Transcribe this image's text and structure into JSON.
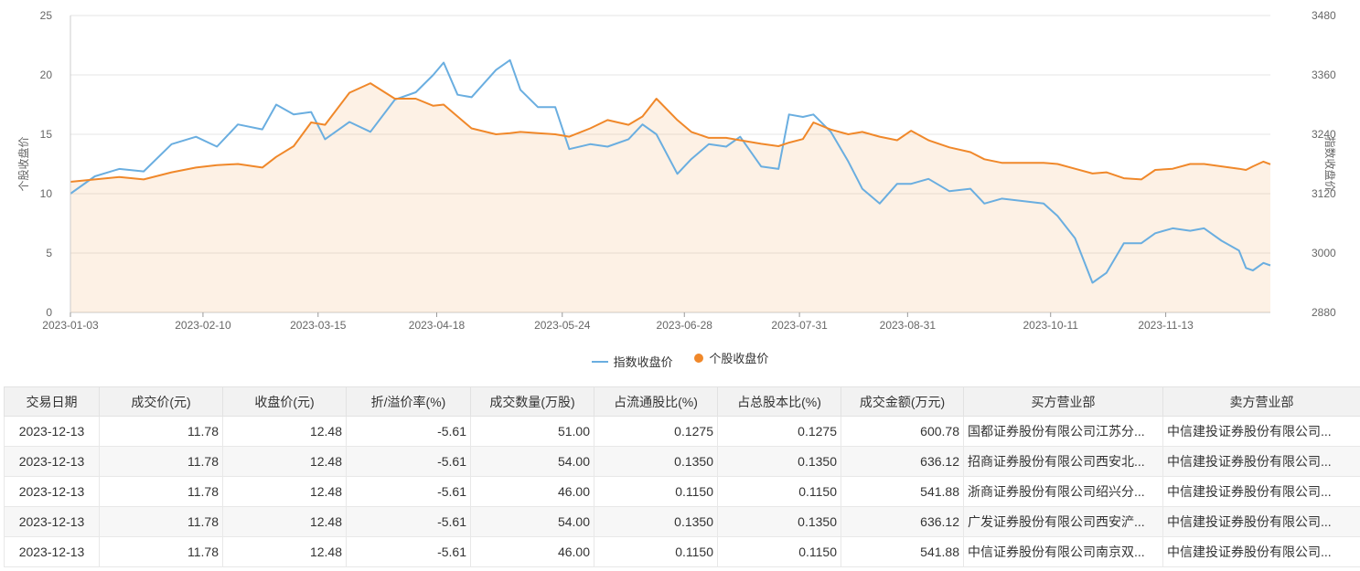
{
  "chart_data": {
    "type": "line",
    "left_axis": {
      "label": "个股收盘价",
      "range": [
        0,
        25
      ],
      "ticks": [
        "0",
        "5",
        "10",
        "15",
        "20",
        "25"
      ]
    },
    "right_axis": {
      "label": "指数收盘价",
      "range": [
        2880,
        3480
      ],
      "ticks": [
        "2880",
        "3000",
        "3120",
        "3240",
        "3360",
        "3480"
      ]
    },
    "x_ticks": [
      "2023-01-03",
      "2023-02-10",
      "2023-03-15",
      "2023-04-18",
      "2023-05-24",
      "2023-06-28",
      "2023-07-31",
      "2023-08-31",
      "2023-10-11",
      "2023-11-13"
    ],
    "x_range": [
      "2023-01-03",
      "2023-12-13"
    ],
    "grid": "horizontal",
    "legend_position": "bottom-center",
    "series": [
      {
        "name": "指数收盘价",
        "axis": "right",
        "color": "#6aaee0",
        "style": "line",
        "points": [
          [
            "2023-01-03",
            3120
          ],
          [
            "2023-01-10",
            3155
          ],
          [
            "2023-01-17",
            3170
          ],
          [
            "2023-01-24",
            3165
          ],
          [
            "2023-02-01",
            3220
          ],
          [
            "2023-02-08",
            3235
          ],
          [
            "2023-02-14",
            3215
          ],
          [
            "2023-02-20",
            3260
          ],
          [
            "2023-02-27",
            3250
          ],
          [
            "2023-03-03",
            3300
          ],
          [
            "2023-03-08",
            3280
          ],
          [
            "2023-03-13",
            3285
          ],
          [
            "2023-03-17",
            3230
          ],
          [
            "2023-03-24",
            3265
          ],
          [
            "2023-03-30",
            3245
          ],
          [
            "2023-04-06",
            3310
          ],
          [
            "2023-04-12",
            3325
          ],
          [
            "2023-04-17",
            3360
          ],
          [
            "2023-04-20",
            3385
          ],
          [
            "2023-04-24",
            3320
          ],
          [
            "2023-04-28",
            3315
          ],
          [
            "2023-05-05",
            3370
          ],
          [
            "2023-05-09",
            3390
          ],
          [
            "2023-05-12",
            3330
          ],
          [
            "2023-05-17",
            3295
          ],
          [
            "2023-05-22",
            3295
          ],
          [
            "2023-05-26",
            3210
          ],
          [
            "2023-06-01",
            3220
          ],
          [
            "2023-06-06",
            3215
          ],
          [
            "2023-06-12",
            3230
          ],
          [
            "2023-06-16",
            3260
          ],
          [
            "2023-06-20",
            3240
          ],
          [
            "2023-06-26",
            3160
          ],
          [
            "2023-06-30",
            3190
          ],
          [
            "2023-07-05",
            3220
          ],
          [
            "2023-07-10",
            3215
          ],
          [
            "2023-07-14",
            3235
          ],
          [
            "2023-07-20",
            3175
          ],
          [
            "2023-07-25",
            3170
          ],
          [
            "2023-07-28",
            3280
          ],
          [
            "2023-08-01",
            3275
          ],
          [
            "2023-08-04",
            3280
          ],
          [
            "2023-08-09",
            3245
          ],
          [
            "2023-08-14",
            3185
          ],
          [
            "2023-08-18",
            3130
          ],
          [
            "2023-08-23",
            3100
          ],
          [
            "2023-08-28",
            3140
          ],
          [
            "2023-09-01",
            3140
          ],
          [
            "2023-09-06",
            3150
          ],
          [
            "2023-09-12",
            3125
          ],
          [
            "2023-09-18",
            3130
          ],
          [
            "2023-09-22",
            3100
          ],
          [
            "2023-09-27",
            3110
          ],
          [
            "2023-10-09",
            3100
          ],
          [
            "2023-10-13",
            3075
          ],
          [
            "2023-10-18",
            3030
          ],
          [
            "2023-10-23",
            2940
          ],
          [
            "2023-10-27",
            2960
          ],
          [
            "2023-11-01",
            3020
          ],
          [
            "2023-11-06",
            3020
          ],
          [
            "2023-11-10",
            3040
          ],
          [
            "2023-11-15",
            3050
          ],
          [
            "2023-11-20",
            3045
          ],
          [
            "2023-11-24",
            3050
          ],
          [
            "2023-11-29",
            3025
          ],
          [
            "2023-12-04",
            3005
          ],
          [
            "2023-12-06",
            2970
          ],
          [
            "2023-12-08",
            2965
          ],
          [
            "2023-12-11",
            2980
          ],
          [
            "2023-12-13",
            2975
          ]
        ]
      },
      {
        "name": "个股收盘价",
        "axis": "left",
        "color": "#f0882a",
        "style": "area",
        "points": [
          [
            "2023-01-03",
            11.0
          ],
          [
            "2023-01-10",
            11.2
          ],
          [
            "2023-01-17",
            11.4
          ],
          [
            "2023-01-24",
            11.2
          ],
          [
            "2023-02-01",
            11.8
          ],
          [
            "2023-02-08",
            12.2
          ],
          [
            "2023-02-14",
            12.4
          ],
          [
            "2023-02-20",
            12.5
          ],
          [
            "2023-02-27",
            12.2
          ],
          [
            "2023-03-03",
            13.1
          ],
          [
            "2023-03-08",
            14.0
          ],
          [
            "2023-03-13",
            16.0
          ],
          [
            "2023-03-17",
            15.8
          ],
          [
            "2023-03-24",
            18.5
          ],
          [
            "2023-03-30",
            19.3
          ],
          [
            "2023-04-06",
            18.0
          ],
          [
            "2023-04-12",
            18.0
          ],
          [
            "2023-04-17",
            17.4
          ],
          [
            "2023-04-20",
            17.5
          ],
          [
            "2023-04-24",
            16.5
          ],
          [
            "2023-04-28",
            15.5
          ],
          [
            "2023-05-05",
            15.0
          ],
          [
            "2023-05-09",
            15.1
          ],
          [
            "2023-05-12",
            15.2
          ],
          [
            "2023-05-17",
            15.1
          ],
          [
            "2023-05-22",
            15.0
          ],
          [
            "2023-05-26",
            14.8
          ],
          [
            "2023-06-01",
            15.5
          ],
          [
            "2023-06-06",
            16.2
          ],
          [
            "2023-06-12",
            15.8
          ],
          [
            "2023-06-16",
            16.5
          ],
          [
            "2023-06-20",
            18.0
          ],
          [
            "2023-06-26",
            16.2
          ],
          [
            "2023-06-30",
            15.2
          ],
          [
            "2023-07-05",
            14.7
          ],
          [
            "2023-07-10",
            14.7
          ],
          [
            "2023-07-14",
            14.5
          ],
          [
            "2023-07-20",
            14.2
          ],
          [
            "2023-07-25",
            14.0
          ],
          [
            "2023-07-28",
            14.3
          ],
          [
            "2023-08-01",
            14.6
          ],
          [
            "2023-08-04",
            16.0
          ],
          [
            "2023-08-09",
            15.4
          ],
          [
            "2023-08-14",
            15.0
          ],
          [
            "2023-08-18",
            15.2
          ],
          [
            "2023-08-23",
            14.8
          ],
          [
            "2023-08-28",
            14.5
          ],
          [
            "2023-09-01",
            15.3
          ],
          [
            "2023-09-06",
            14.5
          ],
          [
            "2023-09-12",
            13.9
          ],
          [
            "2023-09-18",
            13.5
          ],
          [
            "2023-09-22",
            12.9
          ],
          [
            "2023-09-27",
            12.6
          ],
          [
            "2023-10-09",
            12.6
          ],
          [
            "2023-10-13",
            12.5
          ],
          [
            "2023-10-18",
            12.1
          ],
          [
            "2023-10-23",
            11.7
          ],
          [
            "2023-10-27",
            11.8
          ],
          [
            "2023-11-01",
            11.3
          ],
          [
            "2023-11-06",
            11.2
          ],
          [
            "2023-11-10",
            12.0
          ],
          [
            "2023-11-15",
            12.1
          ],
          [
            "2023-11-20",
            12.5
          ],
          [
            "2023-11-24",
            12.5
          ],
          [
            "2023-11-29",
            12.3
          ],
          [
            "2023-12-04",
            12.1
          ],
          [
            "2023-12-06",
            12.0
          ],
          [
            "2023-12-08",
            12.3
          ],
          [
            "2023-12-11",
            12.7
          ],
          [
            "2023-12-13",
            12.48
          ]
        ]
      }
    ]
  },
  "table": {
    "headers": [
      "交易日期",
      "成交价(元)",
      "收盘价(元)",
      "折/溢价率(%)",
      "成交数量(万股)",
      "占流通股比(%)",
      "占总股本比(%)",
      "成交金额(万元)",
      "买方营业部",
      "卖方营业部"
    ],
    "rows": [
      [
        "2023-12-13",
        "11.78",
        "12.48",
        "-5.61",
        "51.00",
        "0.1275",
        "0.1275",
        "600.78",
        "国都证券股份有限公司江苏分...",
        "中信建投证券股份有限公司..."
      ],
      [
        "2023-12-13",
        "11.78",
        "12.48",
        "-5.61",
        "54.00",
        "0.1350",
        "0.1350",
        "636.12",
        "招商证券股份有限公司西安北...",
        "中信建投证券股份有限公司..."
      ],
      [
        "2023-12-13",
        "11.78",
        "12.48",
        "-5.61",
        "46.00",
        "0.1150",
        "0.1150",
        "541.88",
        "浙商证券股份有限公司绍兴分...",
        "中信建投证券股份有限公司..."
      ],
      [
        "2023-12-13",
        "11.78",
        "12.48",
        "-5.61",
        "54.00",
        "0.1350",
        "0.1350",
        "636.12",
        "广发证券股份有限公司西安浐...",
        "中信建投证券股份有限公司..."
      ],
      [
        "2023-12-13",
        "11.78",
        "12.48",
        "-5.61",
        "46.00",
        "0.1150",
        "0.1150",
        "541.88",
        "中信证券股份有限公司南京双...",
        "中信建投证券股份有限公司..."
      ]
    ]
  }
}
